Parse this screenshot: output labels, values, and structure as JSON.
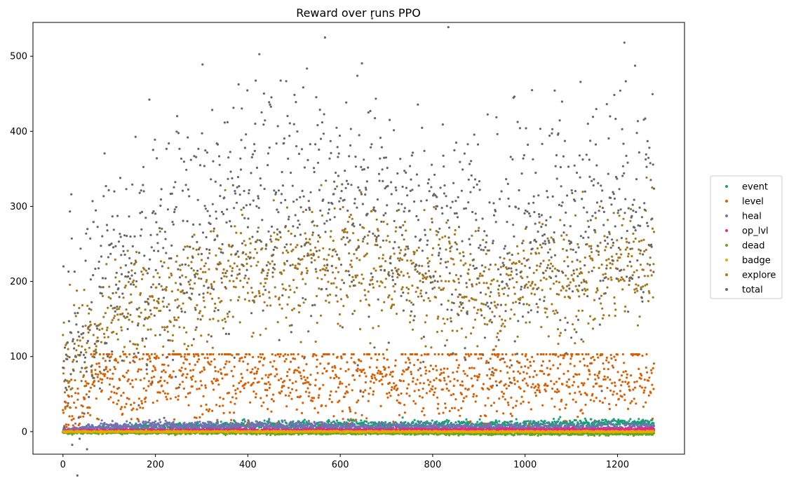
{
  "chart_data": {
    "type": "scatter",
    "title": "Reward over runs PPO",
    "xlabel": "",
    "ylabel": "",
    "xlim": [
      -65,
      1345
    ],
    "ylim": [
      -30,
      545
    ],
    "xticks": [
      0,
      200,
      400,
      600,
      800,
      1000,
      1200
    ],
    "yticks": [
      0,
      100,
      200,
      300,
      400,
      500
    ],
    "grid": false,
    "legend_position": "right",
    "n_points": 1280,
    "series": [
      {
        "name": "event",
        "color": "#1b9e77",
        "profile": [
          [
            0,
            0
          ],
          [
            100,
            3
          ],
          [
            300,
            8
          ],
          [
            600,
            9
          ],
          [
            900,
            9
          ],
          [
            1100,
            10
          ],
          [
            1279,
            12
          ]
        ],
        "spread": 3,
        "low": -1
      },
      {
        "name": "level",
        "color": "#d95f02",
        "profile": [
          [
            0,
            25
          ],
          [
            40,
            25
          ],
          [
            60,
            70
          ],
          [
            1279,
            70
          ]
        ],
        "spread": 28,
        "low": 0,
        "high": 103
      },
      {
        "name": "heal",
        "color": "#7570b3",
        "profile": [
          [
            0,
            0
          ],
          [
            80,
            6
          ],
          [
            200,
            8
          ],
          [
            600,
            6
          ],
          [
            1279,
            5
          ]
        ],
        "spread": 3,
        "low": -1
      },
      {
        "name": "op_lvl",
        "color": "#e7298a",
        "profile": [
          [
            0,
            1
          ],
          [
            1279,
            3
          ]
        ],
        "spread": 1,
        "low": 0
      },
      {
        "name": "dead",
        "color": "#66a61e",
        "profile": [
          [
            0,
            -1
          ],
          [
            1279,
            -3
          ]
        ],
        "spread": 1
      },
      {
        "name": "badge",
        "color": "#e6ab02",
        "profile": [
          [
            0,
            0
          ],
          [
            1279,
            0
          ]
        ],
        "spread": 0.5
      },
      {
        "name": "explore",
        "color": "#a6761d",
        "profile": [
          [
            0,
            95
          ],
          [
            50,
            115
          ],
          [
            100,
            150
          ],
          [
            200,
            170
          ],
          [
            300,
            190
          ],
          [
            400,
            210
          ],
          [
            600,
            215
          ],
          [
            800,
            210
          ],
          [
            950,
            175
          ],
          [
            1000,
            215
          ],
          [
            1100,
            200
          ],
          [
            1200,
            225
          ],
          [
            1279,
            230
          ]
        ],
        "spread": 40
      },
      {
        "name": "total",
        "color": "#666666",
        "profile": [
          [
            0,
            105
          ],
          [
            50,
            140
          ],
          [
            100,
            210
          ],
          [
            200,
            235
          ],
          [
            300,
            270
          ],
          [
            400,
            305
          ],
          [
            500,
            300
          ],
          [
            600,
            300
          ],
          [
            700,
            280
          ],
          [
            800,
            260
          ],
          [
            950,
            225
          ],
          [
            1000,
            280
          ],
          [
            1100,
            280
          ],
          [
            1200,
            310
          ],
          [
            1279,
            320
          ]
        ],
        "spread": 80
      }
    ]
  }
}
